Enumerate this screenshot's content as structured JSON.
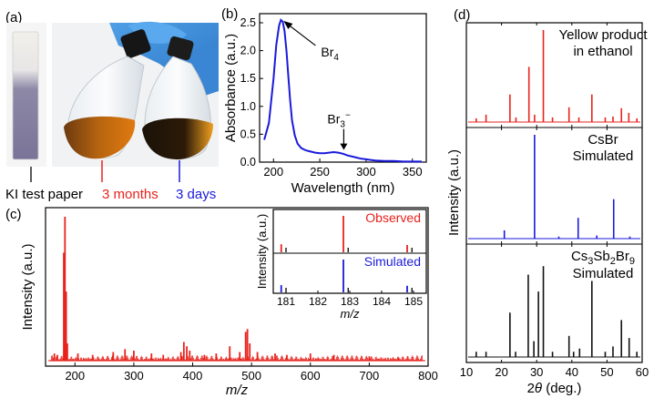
{
  "panels": {
    "a": "(a)",
    "b": "(b)",
    "c": "(c)",
    "d": "(d)"
  },
  "photo": {
    "ki_label": "KI test paper",
    "months_label": "3 months",
    "days_label": "3 days",
    "months_color": "#e8221c",
    "days_color": "#1a1adb"
  },
  "chart_data": [
    {
      "id": "absorbance",
      "type": "line",
      "xlabel": "Wavelength (nm)",
      "ylabel": "Absorbance (a.u.)",
      "xlim": [
        185,
        365
      ],
      "ylim": [
        0,
        2.5
      ],
      "xticks": [
        200,
        250,
        300,
        350
      ],
      "yticks": [
        0.0,
        0.5,
        1.0,
        1.5,
        2.0,
        2.5
      ],
      "color": "#1a1adb",
      "x": [
        190,
        195,
        200,
        203,
        206,
        208,
        210,
        212,
        214,
        216,
        218,
        220,
        223,
        226,
        230,
        235,
        240,
        245,
        250,
        255,
        260,
        265,
        270,
        275,
        280,
        285,
        290,
        295,
        300,
        305,
        310,
        320,
        330,
        340,
        350,
        360
      ],
      "y": [
        0.4,
        0.7,
        1.5,
        2.1,
        2.45,
        2.55,
        2.52,
        2.35,
        2.0,
        1.55,
        1.1,
        0.75,
        0.48,
        0.33,
        0.25,
        0.21,
        0.19,
        0.17,
        0.16,
        0.16,
        0.17,
        0.18,
        0.17,
        0.15,
        0.12,
        0.1,
        0.08,
        0.06,
        0.05,
        0.04,
        0.03,
        0.02,
        0.02,
        0.01,
        0.01,
        0.01
      ],
      "annotations": [
        {
          "text": "Br",
          "sub": "4",
          "sup": "",
          "x": 208,
          "y": 2.55
        },
        {
          "text": "Br",
          "sub": "3",
          "sup": "−",
          "x": 270,
          "y": 0.17
        }
      ]
    },
    {
      "id": "mass-spec",
      "type": "bar",
      "xlabel": "m/z",
      "ylabel": "Intensity (a.u.)",
      "xlim": [
        150,
        800
      ],
      "xticks": [
        200,
        300,
        400,
        500,
        600,
        700,
        800
      ],
      "color": "#e8221c",
      "peaks": [
        {
          "x": 183,
          "y": 1.0
        },
        {
          "x": 181,
          "y": 0.75
        },
        {
          "x": 185,
          "y": 0.48
        },
        {
          "x": 187,
          "y": 0.12
        },
        {
          "x": 165,
          "y": 0.05
        },
        {
          "x": 170,
          "y": 0.04
        },
        {
          "x": 205,
          "y": 0.05
        },
        {
          "x": 230,
          "y": 0.04
        },
        {
          "x": 265,
          "y": 0.06
        },
        {
          "x": 285,
          "y": 0.08
        },
        {
          "x": 300,
          "y": 0.07
        },
        {
          "x": 330,
          "y": 0.05
        },
        {
          "x": 350,
          "y": 0.04
        },
        {
          "x": 380,
          "y": 0.06
        },
        {
          "x": 385,
          "y": 0.13
        },
        {
          "x": 390,
          "y": 0.1
        },
        {
          "x": 395,
          "y": 0.07
        },
        {
          "x": 420,
          "y": 0.04
        },
        {
          "x": 440,
          "y": 0.05
        },
        {
          "x": 463,
          "y": 0.1
        },
        {
          "x": 480,
          "y": 0.06
        },
        {
          "x": 490,
          "y": 0.2
        },
        {
          "x": 493,
          "y": 0.22
        },
        {
          "x": 497,
          "y": 0.12
        },
        {
          "x": 510,
          "y": 0.06
        },
        {
          "x": 540,
          "y": 0.05
        },
        {
          "x": 560,
          "y": 0.04
        },
        {
          "x": 600,
          "y": 0.05
        },
        {
          "x": 640,
          "y": 0.04
        },
        {
          "x": 700,
          "y": 0.03
        },
        {
          "x": 750,
          "y": 0.02
        }
      ],
      "inset": {
        "xlabel": "m/z",
        "ylabel": "Intensity (a.u.)",
        "xlim": [
          180.6,
          185.4
        ],
        "xticks": [
          181,
          182,
          183,
          184,
          185
        ],
        "observed": {
          "name": "Observed",
          "color": "#e8221c",
          "peaks": [
            {
              "x": 180.85,
              "y": 0.22
            },
            {
              "x": 182.8,
              "y": 1.0
            },
            {
              "x": 184.8,
              "y": 0.2
            }
          ]
        },
        "simulated": {
          "name": "Simulated",
          "color": "#1a1adb",
          "peaks": [
            {
              "x": 180.85,
              "y": 0.22
            },
            {
              "x": 182.8,
              "y": 1.0
            },
            {
              "x": 184.8,
              "y": 0.2
            }
          ]
        },
        "black_peaks": [
          181.0,
          182.95,
          184.95
        ]
      }
    },
    {
      "id": "xrd",
      "type": "bar",
      "xlabel": "2θ (deg.)",
      "ylabel": "Intensity (a.u.)",
      "xlim": [
        10,
        60
      ],
      "xticks": [
        10,
        20,
        30,
        40,
        50,
        60
      ],
      "series": [
        {
          "name": "Yellow product in ethanol",
          "label_lines": [
            "Yellow product",
            "in ethanol"
          ],
          "color": "#e8221c",
          "peaks": [
            {
              "x": 12.8,
              "y": 0.04
            },
            {
              "x": 15.6,
              "y": 0.08
            },
            {
              "x": 22.4,
              "y": 0.3
            },
            {
              "x": 24.1,
              "y": 0.05
            },
            {
              "x": 27.8,
              "y": 0.6
            },
            {
              "x": 29.4,
              "y": 0.08
            },
            {
              "x": 31.9,
              "y": 1.0
            },
            {
              "x": 34.5,
              "y": 0.05
            },
            {
              "x": 39.2,
              "y": 0.16
            },
            {
              "x": 42.0,
              "y": 0.05
            },
            {
              "x": 45.7,
              "y": 0.3
            },
            {
              "x": 49.5,
              "y": 0.05
            },
            {
              "x": 51.7,
              "y": 0.06
            },
            {
              "x": 54.1,
              "y": 0.15
            },
            {
              "x": 56.2,
              "y": 0.1
            },
            {
              "x": 58.5,
              "y": 0.04
            }
          ]
        },
        {
          "name": "CsBr Simulated",
          "label_lines": [
            "CsBr",
            "Simulated"
          ],
          "color": "#1a1adb",
          "peaks": [
            {
              "x": 20.8,
              "y": 0.08
            },
            {
              "x": 29.4,
              "y": 1.0
            },
            {
              "x": 36.3,
              "y": 0.02
            },
            {
              "x": 41.8,
              "y": 0.2
            },
            {
              "x": 47.1,
              "y": 0.03
            },
            {
              "x": 51.9,
              "y": 0.38
            },
            {
              "x": 56.5,
              "y": 0.02
            }
          ]
        },
        {
          "name": "Cs3Sb2Br9 Simulated",
          "label_lines": [
            "Cs3Sb2Br9",
            "Simulated"
          ],
          "color": "#111111",
          "peaks": [
            {
              "x": 12.8,
              "y": 0.05
            },
            {
              "x": 15.6,
              "y": 0.05
            },
            {
              "x": 22.4,
              "y": 0.42
            },
            {
              "x": 24.0,
              "y": 0.05
            },
            {
              "x": 27.6,
              "y": 0.78
            },
            {
              "x": 29.2,
              "y": 0.15
            },
            {
              "x": 30.5,
              "y": 0.62
            },
            {
              "x": 31.9,
              "y": 0.86
            },
            {
              "x": 34.5,
              "y": 0.05
            },
            {
              "x": 39.2,
              "y": 0.2
            },
            {
              "x": 40.5,
              "y": 0.05
            },
            {
              "x": 42.2,
              "y": 0.08
            },
            {
              "x": 45.7,
              "y": 0.72
            },
            {
              "x": 49.5,
              "y": 0.05
            },
            {
              "x": 51.7,
              "y": 0.1
            },
            {
              "x": 54.1,
              "y": 0.35
            },
            {
              "x": 56.3,
              "y": 0.18
            },
            {
              "x": 58.5,
              "y": 0.05
            }
          ]
        }
      ]
    }
  ]
}
